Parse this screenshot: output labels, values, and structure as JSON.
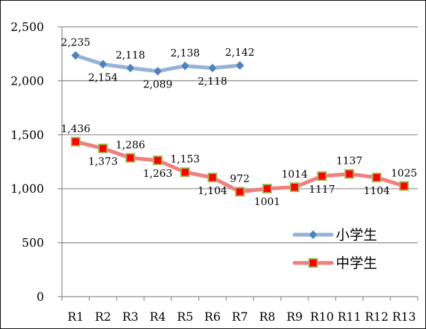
{
  "chart_data": {
    "type": "line",
    "categories": [
      "R1",
      "R2",
      "R3",
      "R4",
      "R5",
      "R6",
      "R7",
      "R8",
      "R9",
      "R10",
      "R11",
      "R12",
      "R13"
    ],
    "ylim": [
      0,
      2500
    ],
    "yticks": [
      0,
      500,
      1000,
      1500,
      2000,
      2500
    ],
    "ytick_labels": [
      "0",
      "500",
      "1,000",
      "1,500",
      "2,000",
      "2,500"
    ],
    "grid": true,
    "legend_position": "right",
    "series": [
      {
        "name": "小学生",
        "color": "#95b3d7",
        "marker_color": "#4f81bd",
        "marker": "diamond",
        "values": [
          2235,
          2154,
          2118,
          2089,
          2138,
          2118,
          2142,
          null,
          null,
          null,
          null,
          null,
          null
        ],
        "labels": [
          "2,235",
          "2,154",
          "2,118",
          "2,089",
          "2,138",
          "2,118",
          "2,142",
          null,
          null,
          null,
          null,
          null,
          null
        ]
      },
      {
        "name": "中学生",
        "color": "#f08080",
        "marker_color": "#ff0000",
        "marker_edge": "#9bbb59",
        "marker": "square",
        "values": [
          1436,
          1373,
          1286,
          1263,
          1153,
          1104,
          972,
          1001,
          1014,
          1117,
          1137,
          1104,
          1025
        ],
        "labels": [
          "1,436",
          "1,373",
          "1,286",
          "1,263",
          "1,153",
          "1,104",
          "972",
          "1001",
          "1014",
          "1117",
          "1137",
          "1104",
          "1025"
        ]
      }
    ]
  }
}
